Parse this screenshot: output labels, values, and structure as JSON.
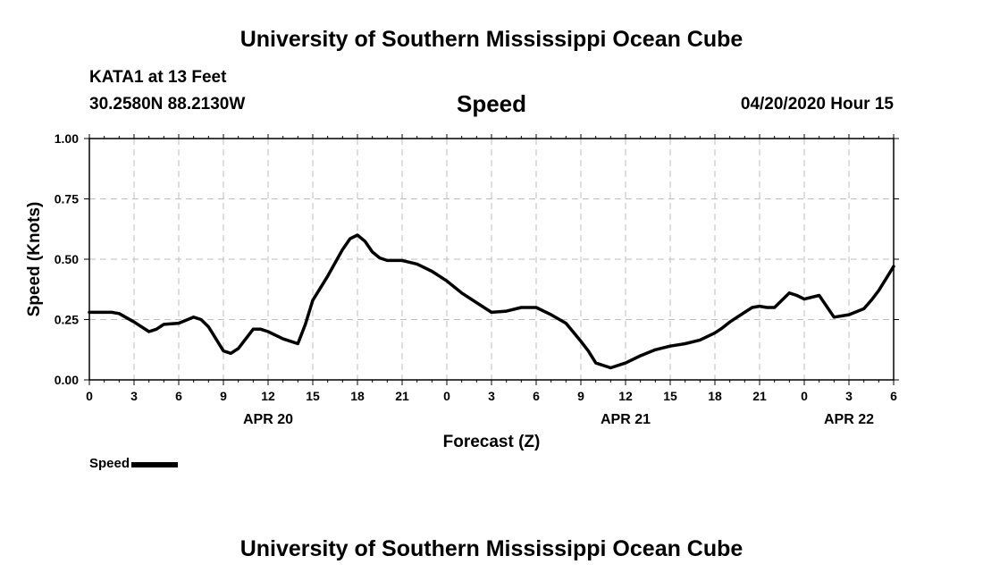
{
  "header": {
    "title": "University of Southern Mississippi Ocean Cube",
    "station": "KATA1 at 13 Feet",
    "coordinates": "30.2580N 88.2130W",
    "chart_title": "Speed",
    "datetime": "04/20/2020 Hour 15"
  },
  "footer": {
    "title": "University of Southern Mississippi Ocean Cube"
  },
  "legend": {
    "label": "Speed",
    "color": "#000000"
  },
  "chart_data": {
    "type": "line",
    "title": "Speed",
    "xlabel": "Forecast (Z)",
    "ylabel": "Speed (Knots)",
    "xlim": [
      0,
      54
    ],
    "ylim": [
      0,
      1.0
    ],
    "x_ticks": [
      0,
      3,
      6,
      9,
      12,
      15,
      18,
      21,
      24,
      27,
      30,
      33,
      36,
      39,
      42,
      45,
      48,
      51,
      54
    ],
    "x_tick_labels": [
      "0",
      "3",
      "6",
      "9",
      "12",
      "15",
      "18",
      "21",
      "0",
      "3",
      "6",
      "9",
      "12",
      "15",
      "18",
      "21",
      "0",
      "3",
      "6"
    ],
    "y_ticks": [
      0,
      0.25,
      0.5,
      0.75,
      1.0
    ],
    "y_tick_labels": [
      "0.00",
      "0.25",
      "0.50",
      "0.75",
      "1.00"
    ],
    "date_labels": [
      {
        "x": 12,
        "label": "APR 20"
      },
      {
        "x": 36,
        "label": "APR 21"
      },
      {
        "x": 51,
        "label": "APR 22"
      }
    ],
    "grid": true,
    "legend_position": "bottom-left",
    "series": [
      {
        "name": "Speed",
        "color": "#000000",
        "x": [
          0,
          1,
          1.5,
          2,
          3,
          4,
          4.5,
          5,
          6,
          7,
          7.5,
          8,
          9,
          9.5,
          10,
          11,
          11.5,
          12,
          13,
          14,
          14.5,
          15,
          16,
          17,
          17.5,
          18,
          18.5,
          19,
          19.5,
          20,
          21,
          22,
          23,
          24,
          25,
          26,
          27,
          28,
          29,
          30,
          31,
          32,
          33,
          33.5,
          34,
          35,
          36,
          37,
          38,
          39,
          40,
          41,
          42,
          42.5,
          43,
          44,
          44.5,
          45,
          45.5,
          46,
          47,
          47.5,
          48,
          49,
          50,
          51,
          52,
          52.5,
          53,
          53.5,
          54
        ],
        "y": [
          0.28,
          0.28,
          0.28,
          0.275,
          0.24,
          0.2,
          0.21,
          0.23,
          0.235,
          0.26,
          0.25,
          0.22,
          0.12,
          0.11,
          0.13,
          0.21,
          0.21,
          0.2,
          0.17,
          0.15,
          0.23,
          0.33,
          0.43,
          0.54,
          0.585,
          0.6,
          0.575,
          0.53,
          0.505,
          0.495,
          0.495,
          0.48,
          0.45,
          0.41,
          0.36,
          0.32,
          0.28,
          0.285,
          0.3,
          0.3,
          0.27,
          0.235,
          0.16,
          0.12,
          0.07,
          0.05,
          0.07,
          0.1,
          0.125,
          0.14,
          0.15,
          0.165,
          0.195,
          0.215,
          0.24,
          0.28,
          0.3,
          0.305,
          0.3,
          0.3,
          0.36,
          0.35,
          0.335,
          0.35,
          0.26,
          0.27,
          0.295,
          0.33,
          0.37,
          0.42,
          0.47
        ]
      }
    ]
  }
}
